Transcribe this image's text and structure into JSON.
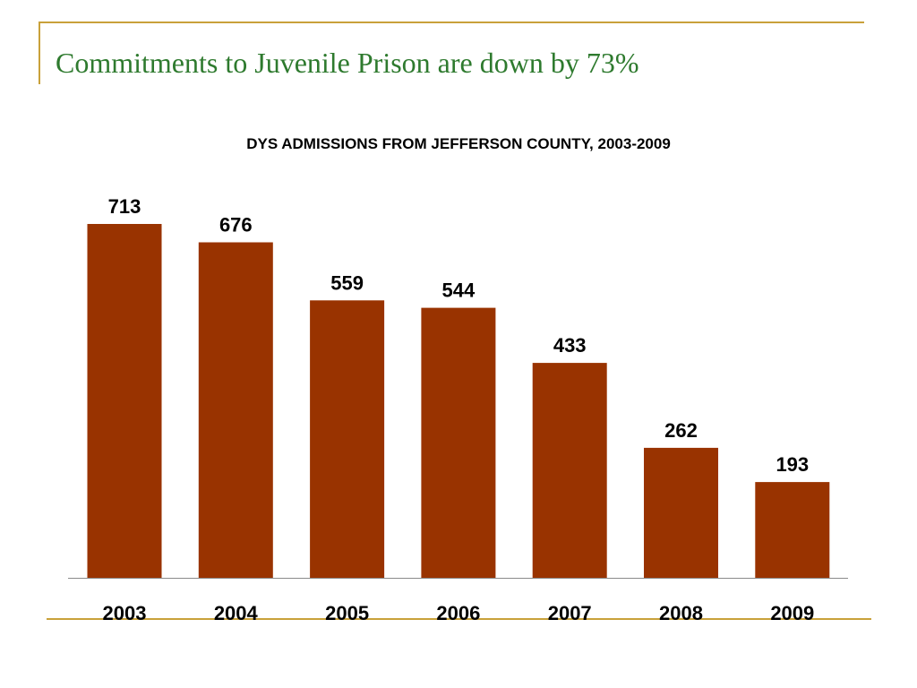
{
  "slide": {
    "title": "Commitments to Juvenile Prison are down by 73%",
    "accent_color": "#c9a13a",
    "title_color": "#2e7a2e"
  },
  "chart_data": {
    "type": "bar",
    "title": "DYS ADMISSIONS FROM JEFFERSON COUNTY, 2003-2009",
    "categories": [
      "2003",
      "2004",
      "2005",
      "2006",
      "2007",
      "2008",
      "2009"
    ],
    "values": [
      713,
      676,
      559,
      544,
      433,
      262,
      193
    ],
    "xlabel": "",
    "ylabel": "",
    "ylim": [
      0,
      713
    ],
    "grid": false,
    "data_labels": true,
    "bar_color": "#993300"
  }
}
